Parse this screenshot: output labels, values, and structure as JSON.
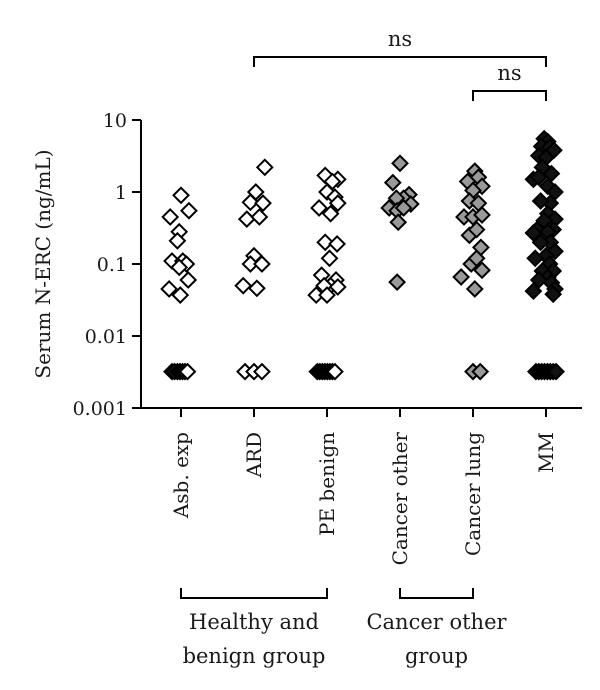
{
  "chart_data": {
    "type": "scatter",
    "ylabel": "Serum N-ERC (ng/mL)",
    "yscale": "log",
    "ylim": [
      0.001,
      10
    ],
    "y_ticks": [
      {
        "value": 10,
        "label": "10"
      },
      {
        "value": 1,
        "label": "1"
      },
      {
        "value": 0.1,
        "label": "0.1"
      },
      {
        "value": 0.01,
        "label": "0.01"
      },
      {
        "value": 0.001,
        "label": "0.001"
      }
    ],
    "categories": [
      "Asb. exp",
      "ARD",
      "PE benign",
      "Cancer other",
      "Cancer lung",
      "MM"
    ],
    "series": [
      {
        "category": "Asb. exp",
        "fill": "#ffffff",
        "points": [
          [
            -0.3,
            0.45
          ],
          [
            0.0,
            0.9
          ],
          [
            0.22,
            0.55
          ],
          [
            -0.05,
            0.28
          ],
          [
            -0.1,
            0.21
          ],
          [
            -0.25,
            0.11
          ],
          [
            0.05,
            0.11
          ],
          [
            0.15,
            0.1
          ],
          [
            -0.05,
            0.09
          ],
          [
            0.2,
            0.06
          ],
          [
            -0.33,
            0.045
          ],
          [
            -0.02,
            0.037
          ],
          [
            -0.25,
            0.0032
          ],
          [
            -0.18,
            0.0032
          ],
          [
            -0.1,
            0.0032
          ],
          [
            -0.03,
            0.0032
          ],
          [
            0.04,
            0.0032
          ],
          [
            0.11,
            0.0032
          ],
          [
            0.18,
            0.0032
          ]
        ]
      },
      {
        "category": "ARD",
        "fill": "#ffffff",
        "points": [
          [
            0.3,
            2.2
          ],
          [
            0.05,
            1.0
          ],
          [
            -0.1,
            0.72
          ],
          [
            0.25,
            0.7
          ],
          [
            -0.2,
            0.42
          ],
          [
            0.15,
            0.45
          ],
          [
            0.0,
            0.13
          ],
          [
            -0.1,
            0.1
          ],
          [
            0.22,
            0.1
          ],
          [
            -0.3,
            0.05
          ],
          [
            0.08,
            0.046
          ],
          [
            -0.25,
            0.0032
          ],
          [
            0.0,
            0.0032
          ],
          [
            0.22,
            0.0032
          ]
        ]
      },
      {
        "category": "PE benign",
        "fill": "#ffffff",
        "points": [
          [
            -0.05,
            1.7
          ],
          [
            0.3,
            1.5
          ],
          [
            0.15,
            1.4
          ],
          [
            0.0,
            1.0
          ],
          [
            0.22,
            0.85
          ],
          [
            -0.22,
            0.6
          ],
          [
            0.3,
            0.7
          ],
          [
            0.1,
            0.5
          ],
          [
            -0.05,
            0.2
          ],
          [
            0.28,
            0.19
          ],
          [
            0.07,
            0.12
          ],
          [
            -0.15,
            0.07
          ],
          [
            0.25,
            0.06
          ],
          [
            0.1,
            0.05
          ],
          [
            -0.08,
            0.05
          ],
          [
            0.3,
            0.048
          ],
          [
            -0.3,
            0.037
          ],
          [
            0.0,
            0.037
          ],
          [
            -0.27,
            0.0032
          ],
          [
            -0.2,
            0.0032
          ],
          [
            -0.13,
            0.0032
          ],
          [
            -0.06,
            0.0032
          ],
          [
            0.01,
            0.0032
          ],
          [
            0.08,
            0.0032
          ],
          [
            0.15,
            0.0032
          ],
          [
            0.22,
            0.0032
          ]
        ]
      },
      {
        "category": "Cancer other",
        "fill": "#999999",
        "points": [
          [
            0.0,
            2.5
          ],
          [
            -0.2,
            1.35
          ],
          [
            0.25,
            0.92
          ],
          [
            0.1,
            0.82
          ],
          [
            -0.1,
            0.82
          ],
          [
            0.3,
            0.68
          ],
          [
            -0.3,
            0.6
          ],
          [
            -0.08,
            0.55
          ],
          [
            0.1,
            0.6
          ],
          [
            -0.05,
            0.38
          ],
          [
            -0.08,
            0.056
          ]
        ]
      },
      {
        "category": "Cancer lung",
        "fill": "#999999",
        "points": [
          [
            0.05,
            1.95
          ],
          [
            0.15,
            1.6
          ],
          [
            -0.15,
            1.4
          ],
          [
            0.25,
            1.2
          ],
          [
            0.0,
            1.05
          ],
          [
            -0.1,
            0.75
          ],
          [
            0.15,
            0.7
          ],
          [
            -0.25,
            0.45
          ],
          [
            0.0,
            0.45
          ],
          [
            0.25,
            0.48
          ],
          [
            -0.1,
            0.25
          ],
          [
            0.1,
            0.3
          ],
          [
            0.22,
            0.17
          ],
          [
            -0.05,
            0.1
          ],
          [
            0.1,
            0.12
          ],
          [
            0.25,
            0.082
          ],
          [
            -0.33,
            0.066
          ],
          [
            0.05,
            0.045
          ],
          [
            0.0,
            0.0032
          ],
          [
            0.2,
            0.0032
          ]
        ]
      },
      {
        "category": "MM",
        "fill": "#111111",
        "points": [
          [
            -0.05,
            5.5
          ],
          [
            0.05,
            5.0
          ],
          [
            -0.12,
            4.3
          ],
          [
            0.1,
            4.2
          ],
          [
            0.22,
            3.8
          ],
          [
            -0.2,
            3.2
          ],
          [
            0.0,
            3.0
          ],
          [
            -0.1,
            2.2
          ],
          [
            0.15,
            1.8
          ],
          [
            -0.35,
            1.5
          ],
          [
            -0.2,
            1.6
          ],
          [
            0.05,
            1.2
          ],
          [
            0.25,
            1.0
          ],
          [
            0.12,
            0.7
          ],
          [
            -0.15,
            0.75
          ],
          [
            0.05,
            0.5
          ],
          [
            0.25,
            0.42
          ],
          [
            -0.05,
            0.4
          ],
          [
            0.2,
            0.3
          ],
          [
            -0.25,
            0.3
          ],
          [
            0.05,
            0.28
          ],
          [
            -0.35,
            0.27
          ],
          [
            0.12,
            0.2
          ],
          [
            -0.15,
            0.2
          ],
          [
            0.25,
            0.15
          ],
          [
            0.0,
            0.13
          ],
          [
            -0.3,
            0.12
          ],
          [
            0.1,
            0.1
          ],
          [
            0.2,
            0.08
          ],
          [
            -0.1,
            0.08
          ],
          [
            0.05,
            0.065
          ],
          [
            -0.2,
            0.06
          ],
          [
            0.15,
            0.055
          ],
          [
            0.25,
            0.045
          ],
          [
            -0.35,
            0.042
          ],
          [
            0.2,
            0.038
          ],
          [
            -0.28,
            0.0032
          ],
          [
            -0.2,
            0.0032
          ],
          [
            -0.12,
            0.0032
          ],
          [
            -0.04,
            0.0032
          ],
          [
            0.04,
            0.0032
          ],
          [
            0.12,
            0.0032
          ],
          [
            0.2,
            0.0032
          ],
          [
            0.28,
            0.0032
          ]
        ]
      }
    ],
    "comparisons": [
      {
        "from": "ARD",
        "to": "MM",
        "label": "ns"
      },
      {
        "from": "Cancer lung",
        "to": "MM",
        "label": "ns"
      }
    ],
    "groups": [
      {
        "from": "Asb. exp",
        "to": "PE benign",
        "lines": [
          "Healthy and",
          "benign group"
        ]
      },
      {
        "from": "Cancer other",
        "to": "Cancer lung",
        "lines": [
          "Cancer other",
          "group"
        ]
      }
    ]
  }
}
